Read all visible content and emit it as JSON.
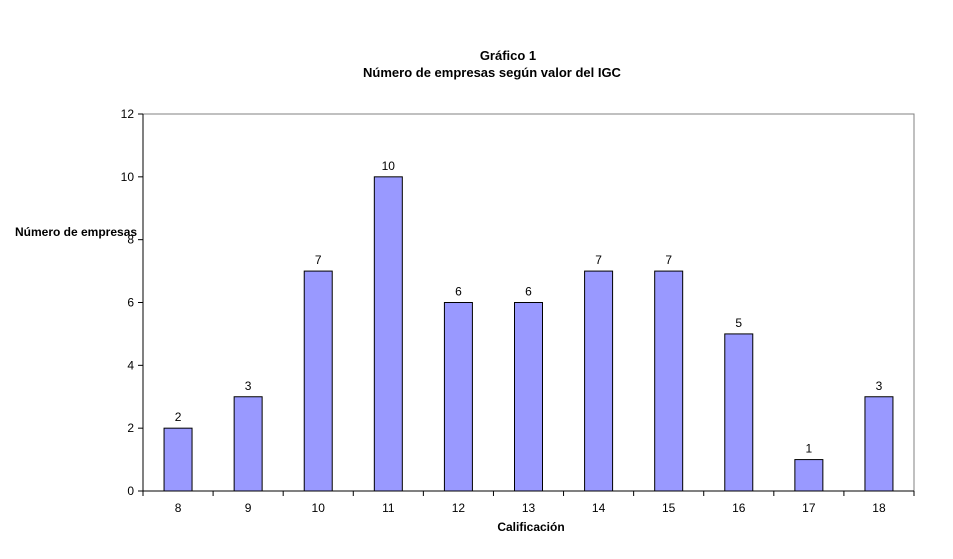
{
  "chart_data": {
    "type": "bar",
    "title": "Gráfico 1",
    "subtitle": "Número de empresas según valor del IGC",
    "xlabel": "Calificación",
    "ylabel": "Número de empresas",
    "categories": [
      "8",
      "9",
      "10",
      "11",
      "12",
      "13",
      "14",
      "15",
      "16",
      "17",
      "18"
    ],
    "values": [
      2,
      3,
      7,
      10,
      6,
      6,
      7,
      7,
      5,
      1,
      3
    ],
    "yticks": [
      "0",
      "2",
      "4",
      "6",
      "8",
      "10",
      "12"
    ],
    "ylim": [
      0,
      12
    ],
    "grid": false,
    "legend": "none",
    "bar_color": "#9999ff",
    "bar_stroke": "#000000"
  }
}
